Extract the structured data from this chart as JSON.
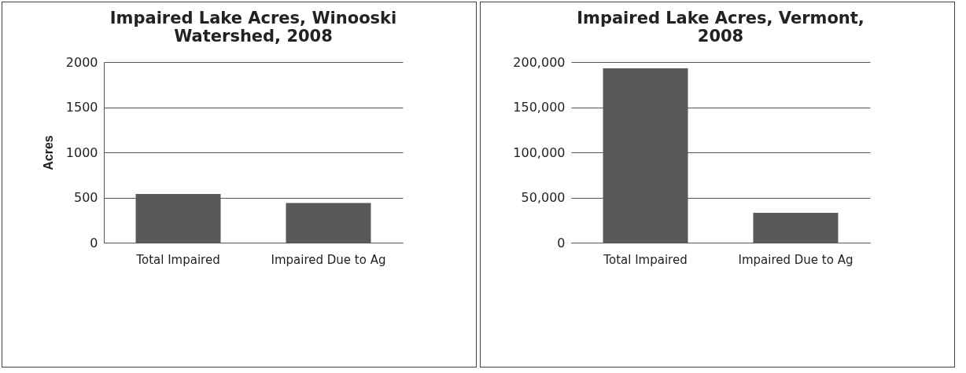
{
  "chart_data": [
    {
      "type": "bar",
      "title": "Impaired Lake Acres, Winooski Watershed, 2008",
      "ylabel": "Acres",
      "categories": [
        "Total Impaired",
        "Impaired Due to Ag"
      ],
      "values": [
        540,
        440
      ],
      "color": "#595959",
      "ylim": [
        0,
        2000
      ],
      "yticks": [
        0,
        500,
        1000,
        1500,
        2000
      ],
      "grid": "y"
    },
    {
      "type": "bar",
      "title": "Impaired Lake Acres, Vermont, 2008",
      "categories": [
        "Total Impaired",
        "Impaired Due to Ag"
      ],
      "values": [
        193000,
        33000
      ],
      "color": "#595959",
      "ylim": [
        0,
        200000
      ],
      "yticks": [
        {
          "value": 0,
          "label": "0"
        },
        {
          "value": 50000,
          "label": "50,000"
        },
        {
          "value": 100000,
          "label": "100,000"
        },
        {
          "value": 150000,
          "label": "150,000"
        },
        {
          "value": 200000,
          "label": "200,000"
        }
      ],
      "grid": "y"
    }
  ]
}
